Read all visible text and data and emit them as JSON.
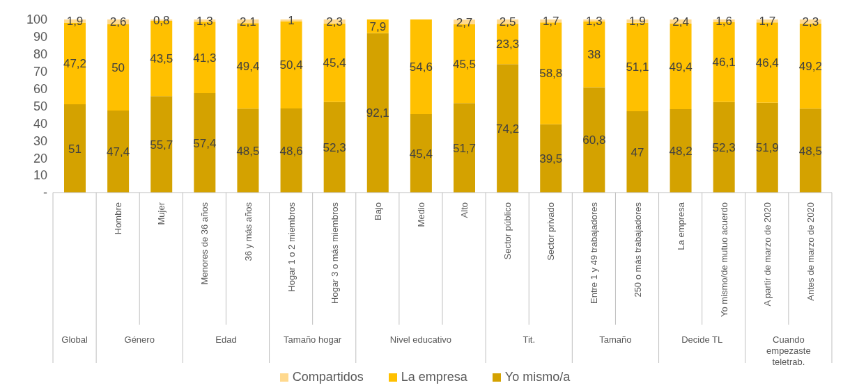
{
  "chart_data": {
    "type": "bar",
    "stacked": true,
    "legend": "bottom",
    "categories": [
      null,
      "Hombre",
      "Mujer",
      "Menores de 36 años",
      "36 y más años",
      "Hogar 1 o 2 miembros",
      "Hogar 3 o más miembros",
      "Bajo",
      "Medio",
      "Alto",
      "Sector público",
      "Sector privado",
      "Entre 1 y 49 trabajadores",
      "250 o más trabajadores",
      "La empresa",
      "Yo mismo/de mutuo acuerdo",
      "A partir de marzo de 2020",
      "Antes de marzo de 2020"
    ],
    "series": [
      {
        "name": "Yo mismo/a",
        "color": "#d4a200",
        "values": [
          51,
          47.4,
          55.7,
          57.4,
          48.5,
          48.6,
          52.3,
          92.1,
          45.4,
          51.7,
          74.2,
          39.5,
          60.8,
          47,
          48.2,
          52.3,
          51.9,
          48.5
        ],
        "value_labels": [
          "51",
          "47,4",
          "55,7",
          "57,4",
          "48,5",
          "48,6",
          "52,3",
          "92,1",
          "45,4",
          "51,7",
          "74,2",
          "39,5",
          "60,8",
          "47",
          "48,2",
          "52,3",
          "51,9",
          "48,5"
        ]
      },
      {
        "name": "La empresa",
        "color": "#ffc000",
        "values": [
          47.2,
          50,
          43.5,
          41.3,
          49.4,
          50.4,
          45.4,
          7.9,
          54.6,
          45.5,
          23.3,
          58.8,
          38,
          51.1,
          49.4,
          46.1,
          46.4,
          49.2
        ],
        "value_labels": [
          "47,2",
          "50",
          "43,5",
          "41,3",
          "49,4",
          "50,4",
          "45,4",
          "7,9",
          "54,6",
          "45,5",
          "23,3",
          "58,8",
          "38",
          "51,1",
          "49,4",
          "46,1",
          "46,4",
          "49,2"
        ]
      },
      {
        "name": "Compartidos",
        "color": "#ffd98e",
        "values": [
          1.9,
          2.6,
          0.8,
          1.3,
          2.1,
          1,
          2.3,
          null,
          null,
          2.7,
          2.5,
          1.7,
          1.3,
          1.9,
          2.4,
          1.6,
          1.7,
          2.3
        ],
        "value_labels": [
          "1,9",
          "2,6",
          "0,8",
          "1,3",
          "2,1",
          "1",
          "2,3",
          null,
          null,
          "2,7",
          "2,5",
          "1,7",
          "1,3",
          "1,9",
          "2,4",
          "1,6",
          "1,7",
          "2,3"
        ]
      }
    ],
    "ylim": [
      0,
      100
    ],
    "yticks": [
      {
        "value": 0,
        "label": "-"
      },
      10,
      20,
      30,
      40,
      50,
      60,
      70,
      80,
      90,
      100
    ],
    "annotations": [
      "Global",
      "Género",
      "Edad",
      "Tamaño hogar",
      "Nivel educativo",
      "Tit.",
      "Tamaño",
      "Decide TL",
      "Cuando empezaste teletrab."
    ]
  }
}
